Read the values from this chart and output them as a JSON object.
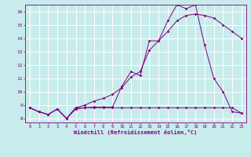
{
  "xlabel": "Windchill (Refroidissement éolien,°C)",
  "background_color": "#c8ecec",
  "grid_color": "#ffffff",
  "line_color": "#800080",
  "xlim": [
    -0.5,
    23.5
  ],
  "ylim": [
    7.7,
    16.5
  ],
  "xticks": [
    0,
    1,
    2,
    3,
    4,
    5,
    6,
    7,
    8,
    9,
    10,
    11,
    12,
    13,
    14,
    15,
    16,
    17,
    18,
    19,
    20,
    21,
    22,
    23
  ],
  "yticks": [
    8,
    9,
    10,
    11,
    12,
    13,
    14,
    15,
    16
  ],
  "line1_x": [
    0,
    1,
    2,
    3,
    4,
    5,
    6,
    7,
    8,
    9,
    10,
    11,
    12,
    13,
    14,
    15,
    16,
    17,
    18,
    19,
    20,
    21,
    22,
    23
  ],
  "line1_y": [
    8.8,
    8.5,
    8.3,
    8.7,
    8.0,
    8.7,
    8.8,
    8.85,
    8.85,
    8.85,
    10.4,
    11.5,
    11.2,
    13.8,
    13.8,
    15.3,
    16.5,
    16.2,
    16.5,
    13.5,
    11.0,
    10.0,
    8.5,
    8.4
  ],
  "line2_x": [
    0,
    1,
    2,
    3,
    4,
    5,
    6,
    7,
    8,
    9,
    10,
    11,
    12,
    13,
    14,
    15,
    16,
    17,
    18,
    19,
    20,
    21,
    22,
    23
  ],
  "line2_y": [
    8.8,
    8.5,
    8.3,
    8.7,
    8.0,
    8.8,
    9.0,
    9.3,
    9.5,
    9.8,
    10.3,
    11.1,
    11.5,
    13.1,
    13.8,
    14.5,
    15.3,
    15.7,
    15.8,
    15.7,
    15.5,
    15.0,
    14.5,
    14.0
  ],
  "line3_x": [
    0,
    1,
    2,
    3,
    4,
    5,
    6,
    7,
    8,
    9,
    10,
    11,
    12,
    13,
    14,
    15,
    16,
    17,
    18,
    19,
    20,
    21,
    22,
    23
  ],
  "line3_y": [
    8.8,
    8.5,
    8.3,
    8.7,
    8.0,
    8.8,
    8.8,
    8.8,
    8.8,
    8.8,
    8.8,
    8.8,
    8.8,
    8.8,
    8.8,
    8.8,
    8.8,
    8.8,
    8.8,
    8.8,
    8.8,
    8.8,
    8.8,
    8.4
  ]
}
